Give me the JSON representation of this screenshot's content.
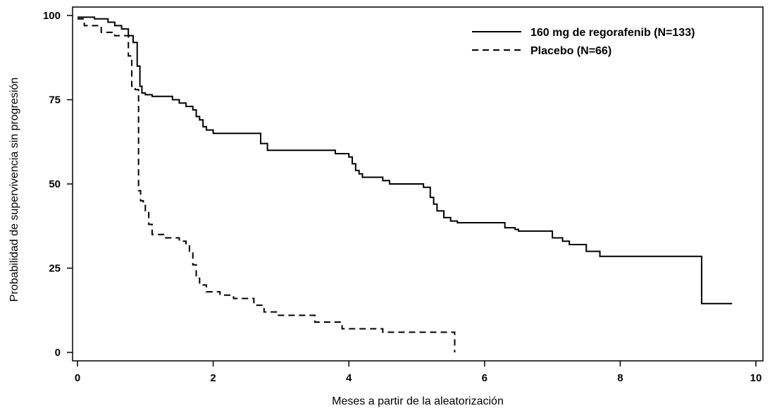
{
  "chart_data": {
    "type": "line",
    "title": "",
    "xlabel": "Meses a partir de la aleatorización",
    "ylabel": "Probabilidad de supervivencia sin progresión",
    "xlim": [
      0,
      10
    ],
    "ylim": [
      0,
      100
    ],
    "xticks": [
      0,
      2,
      4,
      6,
      8,
      10
    ],
    "yticks": [
      0,
      25,
      50,
      75,
      100
    ],
    "grid": false,
    "legend_position": "top-right",
    "series": [
      {
        "name": "160 mg de regorafenib (N=133)",
        "style": "solid",
        "x": [
          0,
          0.25,
          0.45,
          0.55,
          0.65,
          0.75,
          0.82,
          0.88,
          0.92,
          0.95,
          1.0,
          1.1,
          1.4,
          1.5,
          1.6,
          1.7,
          1.75,
          1.8,
          1.85,
          1.9,
          2.0,
          2.7,
          2.8,
          3.8,
          4.0,
          4.05,
          4.1,
          4.15,
          4.2,
          4.5,
          4.6,
          4.9,
          5.1,
          5.2,
          5.25,
          5.3,
          5.4,
          5.5,
          5.6,
          6.3,
          6.45,
          6.5,
          7.0,
          7.15,
          7.25,
          7.5,
          7.7,
          8.5,
          9.2,
          9.65
        ],
        "y": [
          99.5,
          99,
          98,
          97,
          96,
          94,
          92,
          85,
          79,
          77,
          76.5,
          76,
          75,
          74,
          73,
          72,
          70,
          69,
          67,
          66,
          65,
          62,
          60,
          59,
          58,
          56,
          54,
          53,
          52,
          51,
          50,
          50,
          49,
          46,
          44,
          42,
          40,
          39,
          38.5,
          37,
          36.5,
          36,
          34,
          33,
          32,
          30,
          28.5,
          28.5,
          14.5,
          14.5
        ]
      },
      {
        "name": "Placebo (N=66)",
        "style": "dashed",
        "x": [
          0,
          0.1,
          0.35,
          0.55,
          0.75,
          0.8,
          0.85,
          0.9,
          0.93,
          0.97,
          1.0,
          1.05,
          1.1,
          1.3,
          1.5,
          1.6,
          1.65,
          1.7,
          1.75,
          1.8,
          1.9,
          2.1,
          2.3,
          2.6,
          2.75,
          2.95,
          3.5,
          3.9,
          4.5,
          5.1,
          5.55,
          5.56
        ],
        "y": [
          99,
          97,
          95,
          94,
          88,
          79,
          78,
          48,
          45,
          44,
          42,
          38,
          35,
          34,
          33,
          32,
          30,
          26,
          22,
          20,
          18,
          17,
          16,
          14,
          12,
          11,
          9,
          7,
          6,
          6,
          6,
          0
        ]
      }
    ]
  }
}
